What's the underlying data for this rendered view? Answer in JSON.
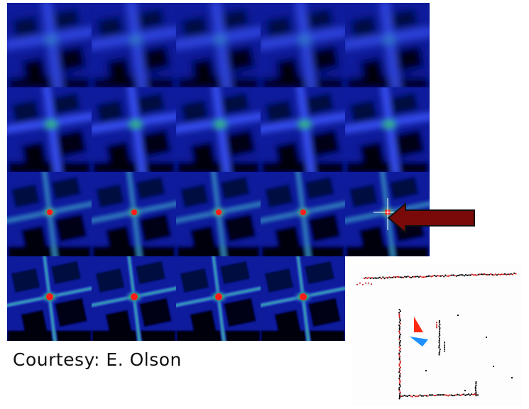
{
  "caption": "Courtesy: E. Olson",
  "grid": {
    "rows": 4,
    "columns": 5,
    "tile_count": 19,
    "description_stages": [
      "blurred",
      "coarse",
      "sharper",
      "sharpest"
    ]
  },
  "colors": {
    "background": "#000a30",
    "feature": "#2030ff",
    "peak_low": "#30c060",
    "peak_high": "#ff2020",
    "arrow": "#7a0a0a",
    "scan_point": "#d01010",
    "scan_dark": "#000000",
    "robot_red": "#ff2a10",
    "robot_blue": "#1e90ff"
  },
  "icons": {
    "arrow": "left-arrow-icon",
    "crosshair": "crosshair-icon",
    "robot": "robot-pose-icon"
  }
}
